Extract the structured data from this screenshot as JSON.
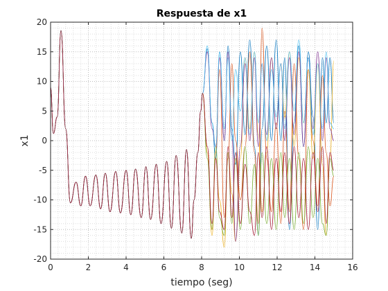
{
  "chart_data": {
    "type": "line",
    "title": "Respuesta de x1",
    "xlabel": "tiempo (seg)",
    "ylabel": "x1",
    "xlim": [
      0,
      16
    ],
    "ylim": [
      -20,
      20
    ],
    "xticks": [
      0,
      2,
      4,
      6,
      8,
      10,
      12,
      14,
      16
    ],
    "yticks": [
      -20,
      -15,
      -10,
      -5,
      0,
      5,
      10,
      15,
      20
    ],
    "grid": "dotted (major and minor)",
    "legend": "none",
    "t_end": 15,
    "colors": [
      "#0072bd",
      "#d95319",
      "#edb120",
      "#7e2f8e",
      "#77ac30",
      "#4dbeee",
      "#a2142f"
    ],
    "series": [
      {
        "color": "#0072bd",
        "x": [
          0,
          0.15,
          0.35,
          0.55,
          0.8,
          1.05,
          1.35,
          1.6,
          1.85,
          2.1,
          2.4,
          2.65,
          2.9,
          3.15,
          3.45,
          3.7,
          4.0,
          4.25,
          4.5,
          4.8,
          5.05,
          5.3,
          5.6,
          5.85,
          6.15,
          6.4,
          6.65,
          6.95,
          7.2,
          7.45,
          7.6,
          7.8,
          7.95,
          8.05,
          8.3,
          8.55,
          8.75,
          8.95,
          9.2,
          9.4,
          9.6,
          9.8,
          10.05,
          10.3,
          10.55,
          10.8,
          11.0,
          11.2,
          11.45,
          11.7,
          11.95,
          12.2,
          12.4,
          12.65,
          12.9,
          13.15,
          13.4,
          13.65,
          13.9,
          14.15,
          14.4,
          14.6,
          14.8,
          15.0
        ],
        "y": [
          9,
          1.2,
          4,
          18.6,
          2,
          -10.5,
          -7,
          -11,
          -6,
          -11,
          -5.8,
          -11.5,
          -5.5,
          -12,
          -5.2,
          -12.2,
          -5,
          -12.5,
          -4.8,
          -13,
          -4.4,
          -13.3,
          -4,
          -14,
          -3.5,
          -14.8,
          -2.5,
          -15.6,
          -1.5,
          -16.5,
          -10,
          -2,
          5,
          8,
          15.5,
          3,
          -3,
          15,
          0,
          16,
          2,
          -4,
          15,
          1,
          17,
          -1,
          -16,
          2,
          16,
          0,
          17,
          0,
          14,
          -15,
          3,
          16,
          -1,
          15,
          4,
          -15,
          14,
          3,
          14,
          3
        ]
      },
      {
        "color": "#d95319",
        "x": [
          0,
          0.15,
          0.35,
          0.55,
          0.8,
          1.05,
          1.35,
          1.6,
          1.85,
          2.1,
          2.4,
          2.65,
          2.9,
          3.15,
          3.45,
          3.7,
          4.0,
          4.25,
          4.5,
          4.8,
          5.05,
          5.3,
          5.6,
          5.85,
          6.15,
          6.4,
          6.65,
          6.95,
          7.2,
          7.45,
          7.6,
          7.8,
          7.95,
          8.05,
          8.3,
          8.55,
          8.75,
          8.95,
          9.2,
          9.4,
          9.6,
          9.8,
          10.05,
          10.3,
          10.55,
          10.8,
          11.0,
          11.2,
          11.45,
          11.7,
          11.95,
          12.2,
          12.4,
          12.65,
          12.9,
          13.15,
          13.4,
          13.65,
          13.9,
          14.15,
          14.4,
          14.6,
          14.8,
          15.0
        ],
        "y": [
          9,
          1.2,
          4,
          18.6,
          2,
          -10.5,
          -7,
          -11,
          -6,
          -11,
          -5.8,
          -11.5,
          -5.5,
          -12,
          -5.2,
          -12.2,
          -5,
          -12.5,
          -4.8,
          -13,
          -4.4,
          -13.3,
          -4,
          -14,
          -3.5,
          -14.8,
          -2.5,
          -15.6,
          -1.5,
          -16.5,
          -10,
          -2,
          5,
          8,
          -1,
          -15,
          -2,
          12,
          -13,
          -3,
          13,
          0,
          -10,
          -1,
          15,
          -2,
          -14,
          19,
          -3,
          -12,
          3,
          -14,
          5,
          -12,
          13,
          -3,
          -15,
          12,
          0,
          -11,
          11,
          -2,
          -11,
          -6
        ]
      },
      {
        "color": "#edb120",
        "x": [
          0,
          0.15,
          0.35,
          0.55,
          0.8,
          1.05,
          1.35,
          1.6,
          1.85,
          2.1,
          2.4,
          2.65,
          2.9,
          3.15,
          3.45,
          3.7,
          4.0,
          4.25,
          4.5,
          4.8,
          5.05,
          5.3,
          5.6,
          5.85,
          6.15,
          6.4,
          6.65,
          6.95,
          7.2,
          7.45,
          7.6,
          7.8,
          7.95,
          8.05,
          8.3,
          8.55,
          8.75,
          8.95,
          9.2,
          9.4,
          9.6,
          9.8,
          10.05,
          10.3,
          10.55,
          10.8,
          11.0,
          11.2,
          11.45,
          11.7,
          11.95,
          12.2,
          12.4,
          12.65,
          12.9,
          13.15,
          13.4,
          13.65,
          13.9,
          14.15,
          14.4,
          14.6,
          14.8,
          15.0
        ],
        "y": [
          9,
          1.2,
          4,
          18.6,
          2,
          -10.5,
          -7,
          -11,
          -6,
          -11,
          -5.8,
          -11.5,
          -5.5,
          -12,
          -5.2,
          -12.2,
          -5,
          -12.5,
          -4.8,
          -13,
          -4.4,
          -13.3,
          -4,
          -14,
          -3.5,
          -14.8,
          -2.5,
          -15.6,
          -1.5,
          -16.5,
          -10,
          -2,
          5,
          8,
          -2,
          -16,
          -3,
          -10,
          -18,
          -2,
          -9,
          -17,
          -3,
          14,
          2,
          15,
          1,
          -12,
          -2,
          14,
          2,
          13,
          4,
          15,
          -1,
          14,
          3,
          12,
          -3,
          13,
          -4,
          -16,
          -3,
          13.5
        ]
      },
      {
        "color": "#7e2f8e",
        "x": [
          0,
          0.15,
          0.35,
          0.55,
          0.8,
          1.05,
          1.35,
          1.6,
          1.85,
          2.1,
          2.4,
          2.65,
          2.9,
          3.15,
          3.45,
          3.7,
          4.0,
          4.25,
          4.5,
          4.8,
          5.05,
          5.3,
          5.6,
          5.85,
          6.15,
          6.4,
          6.65,
          6.95,
          7.2,
          7.45,
          7.6,
          7.8,
          7.95,
          8.05,
          8.3,
          8.55,
          8.75,
          8.95,
          9.2,
          9.4,
          9.6,
          9.8,
          10.05,
          10.3,
          10.55,
          10.8,
          11.0,
          11.2,
          11.45,
          11.7,
          11.95,
          12.2,
          12.4,
          12.65,
          12.9,
          13.15,
          13.4,
          13.65,
          13.9,
          14.15,
          14.4,
          14.6,
          14.8,
          15.0
        ],
        "y": [
          9,
          1.2,
          4,
          18.6,
          2,
          -10.5,
          -7,
          -11,
          -6,
          -11,
          -5.8,
          -11.5,
          -5.5,
          -12,
          -5.2,
          -12.2,
          -5,
          -12.5,
          -4.8,
          -13,
          -4.4,
          -13.3,
          -4,
          -14,
          -3.5,
          -14.8,
          -2.5,
          -15.6,
          -1.5,
          -16.5,
          -10,
          -2,
          5,
          8,
          15,
          2,
          -1,
          14,
          0,
          15,
          1,
          -17,
          -1,
          13,
          0,
          14,
          -1,
          13,
          1,
          14,
          2,
          13,
          0,
          14,
          1,
          15,
          -1,
          14,
          2,
          15,
          0,
          14,
          2,
          0
        ]
      },
      {
        "color": "#77ac30",
        "x": [
          0,
          0.15,
          0.35,
          0.55,
          0.8,
          1.05,
          1.35,
          1.6,
          1.85,
          2.1,
          2.4,
          2.65,
          2.9,
          3.15,
          3.45,
          3.7,
          4.0,
          4.25,
          4.5,
          4.8,
          5.05,
          5.3,
          5.6,
          5.85,
          6.15,
          6.4,
          6.65,
          6.95,
          7.2,
          7.45,
          7.6,
          7.8,
          7.95,
          8.05,
          8.3,
          8.55,
          8.75,
          8.95,
          9.2,
          9.4,
          9.6,
          9.8,
          10.05,
          10.3,
          10.55,
          10.8,
          11.0,
          11.2,
          11.45,
          11.7,
          11.95,
          12.2,
          12.4,
          12.65,
          12.9,
          13.15,
          13.4,
          13.65,
          13.9,
          14.15,
          14.4,
          14.6,
          14.8,
          15.0
        ],
        "y": [
          9,
          1.2,
          4,
          18.6,
          2,
          -10.5,
          -7,
          -11,
          -6,
          -11,
          -5.8,
          -11.5,
          -5.5,
          -12,
          -5.2,
          -12.2,
          -5,
          -12.5,
          -4.8,
          -13,
          -4.4,
          -13.3,
          -4,
          -14,
          -3.5,
          -14.8,
          -2.5,
          -15.6,
          -1.5,
          -16.5,
          -10,
          -2,
          5,
          8,
          -3,
          -15,
          -1,
          -13,
          -16,
          -2,
          -14,
          -3,
          -15,
          -1,
          -14,
          -4,
          -16,
          -2,
          -14,
          -3,
          -15,
          -2,
          -13,
          -3,
          -15,
          -2,
          -14,
          -1,
          -13,
          -3,
          -14,
          -16,
          -3,
          -6
        ]
      },
      {
        "color": "#4dbeee",
        "x": [
          0,
          0.15,
          0.35,
          0.55,
          0.8,
          1.05,
          1.35,
          1.6,
          1.85,
          2.1,
          2.4,
          2.65,
          2.9,
          3.15,
          3.45,
          3.7,
          4.0,
          4.25,
          4.5,
          4.8,
          5.05,
          5.3,
          5.6,
          5.85,
          6.15,
          6.4,
          6.65,
          6.95,
          7.2,
          7.45,
          7.6,
          7.8,
          7.95,
          8.05,
          8.3,
          8.55,
          8.75,
          8.95,
          9.2,
          9.4,
          9.6,
          9.8,
          10.05,
          10.3,
          10.55,
          10.8,
          11.0,
          11.2,
          11.45,
          11.7,
          11.95,
          12.2,
          12.4,
          12.65,
          12.9,
          13.15,
          13.4,
          13.65,
          13.9,
          14.15,
          14.4,
          14.6,
          14.8,
          15.0
        ],
        "y": [
          9,
          1.2,
          4,
          18.6,
          2,
          -10.5,
          -7,
          -11,
          -6,
          -11,
          -5.8,
          -11.5,
          -5.5,
          -12,
          -5.2,
          -12.2,
          -5,
          -12.5,
          -4.8,
          -13,
          -4.4,
          -13.3,
          -4,
          -14,
          -3.5,
          -14.8,
          -2.5,
          -15.6,
          -1.5,
          -16.5,
          -10,
          -2,
          5,
          8,
          16,
          3,
          -1,
          15,
          2,
          14,
          0,
          12,
          5,
          14,
          1,
          15,
          3,
          13,
          0,
          12,
          4,
          13,
          2,
          15,
          5,
          17,
          3,
          14,
          1,
          13,
          2,
          15,
          3,
          2
        ]
      },
      {
        "color": "#a2142f",
        "x": [
          0,
          0.15,
          0.35,
          0.55,
          0.8,
          1.05,
          1.35,
          1.6,
          1.85,
          2.1,
          2.4,
          2.65,
          2.9,
          3.15,
          3.45,
          3.7,
          4.0,
          4.25,
          4.5,
          4.8,
          5.05,
          5.3,
          5.6,
          5.85,
          6.15,
          6.4,
          6.65,
          6.95,
          7.2,
          7.45,
          7.6,
          7.8,
          7.95,
          8.05,
          8.3,
          8.55,
          8.75,
          8.95,
          9.2,
          9.4,
          9.6,
          9.8,
          10.05,
          10.3,
          10.55,
          10.8,
          11.0,
          11.2,
          11.45,
          11.7,
          11.95,
          12.2,
          12.4,
          12.65,
          12.9,
          13.15,
          13.4,
          13.65,
          13.9,
          14.15,
          14.4,
          14.6,
          14.8,
          15.0
        ],
        "y": [
          9,
          1.2,
          4,
          18.6,
          2,
          -10.5,
          -7,
          -11,
          -6,
          -11,
          -5.8,
          -11.5,
          -5.5,
          -12,
          -5.2,
          -12.2,
          -5,
          -12.5,
          -4.8,
          -13,
          -4.4,
          -13.3,
          -4,
          -14,
          -3.5,
          -14.8,
          -2.5,
          -15.6,
          -1.5,
          -16.5,
          -10,
          -2,
          5,
          8,
          -1,
          -14,
          -3,
          -12,
          -15,
          -1,
          -13,
          -2,
          -14,
          -4,
          -12,
          -16,
          -2,
          -13,
          -1,
          -15,
          -3,
          -12,
          -2,
          -14,
          -1,
          -13,
          -3,
          -15,
          -2,
          -12,
          -1,
          -14,
          -2,
          -5
        ]
      }
    ]
  }
}
